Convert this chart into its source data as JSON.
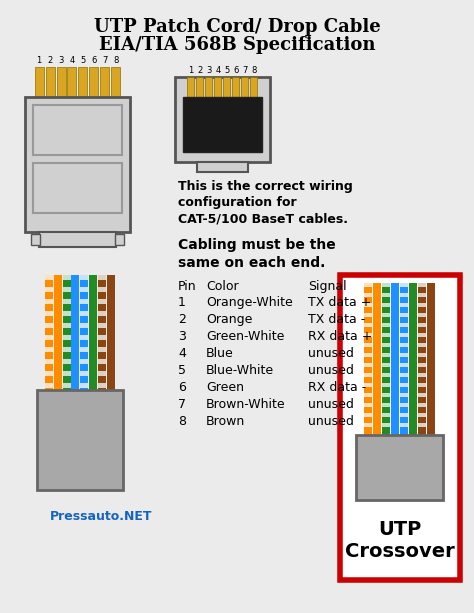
{
  "title_line1": "UTP Patch Cord/ Drop Cable",
  "title_line2": "EIA/TIA 568B Specification",
  "bg_color": "#ebebeb",
  "wire_colors_hex": [
    "#FF8C00",
    "#FF8C00",
    "#228B22",
    "#1E90FF",
    "#1E90FF",
    "#228B22",
    "#8B4513",
    "#8B4513"
  ],
  "wire_stripes": [
    true,
    false,
    true,
    false,
    true,
    false,
    true,
    false
  ],
  "signals": [
    "TX data +",
    "TX data -",
    "RX data +",
    "unused",
    "unused",
    "RX data -",
    "unused",
    "unused"
  ],
  "color_names": [
    "Orange-White",
    "Orange",
    "Green-White",
    "Blue",
    "Blue-White",
    "Green",
    "Brown-White",
    "Brown"
  ],
  "text1": "This is the correct wiring",
  "text2": "configuration for",
  "text3": "CAT-5/100 BaseT cables.",
  "text4": "Cabling must be the",
  "text5": "same on each end.",
  "label_pressauto": "Pressauto.NET",
  "label_utp": "UTP",
  "label_crossover": "Crossover",
  "red_border": "#CC0000",
  "connector_color": "#D0D0D0",
  "gold_color": "#DAA520",
  "jacket_color": "#A8A8A8"
}
